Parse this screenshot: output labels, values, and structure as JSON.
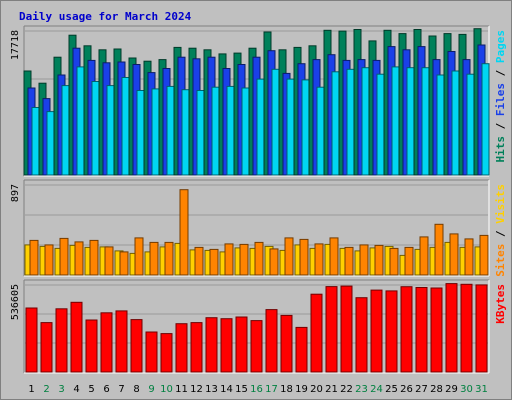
{
  "chart_data": {
    "type": "bar",
    "title": "Daily usage for March 2024",
    "categories": [
      "1",
      "2",
      "3",
      "4",
      "5",
      "6",
      "7",
      "8",
      "9",
      "10",
      "11",
      "12",
      "13",
      "14",
      "15",
      "16",
      "17",
      "18",
      "19",
      "20",
      "21",
      "22",
      "23",
      "24",
      "25",
      "26",
      "27",
      "28",
      "29",
      "30",
      "31"
    ],
    "weekend_days": [
      "2",
      "3",
      "9",
      "10",
      "16",
      "17",
      "23",
      "24",
      "30",
      "31"
    ],
    "colors": {
      "background": "#c0c0c0",
      "title": "#0000cc",
      "hits": "#00805a",
      "files": "#1a40e8",
      "pages": "#00d6f2",
      "visits": "#ffd000",
      "sites": "#ff8400",
      "kbytes": "#ff0000",
      "weekday_label": "#000000",
      "weekend_label": "#008040"
    },
    "panels": [
      {
        "id": "hits-files-pages",
        "max_label": "17718",
        "ylim": [
          0,
          17718
        ],
        "series": [
          {
            "name": "Hits",
            "color": "#00805a",
            "values": [
              12800,
              11300,
              14500,
              17200,
              15900,
              15400,
              15500,
              14400,
              14000,
              14200,
              15700,
              15600,
              15400,
              14900,
              15000,
              15600,
              17600,
              15400,
              15700,
              15900,
              17800,
              17700,
              17900,
              16500,
              17800,
              17400,
              17900,
              17100,
              17400,
              17300,
              18000
            ]
          },
          {
            "name": "Files",
            "color": "#1a40e8",
            "values": [
              10700,
              9400,
              12300,
              15600,
              14100,
              13800,
              13900,
              13600,
              12600,
              13100,
              14500,
              14300,
              14500,
              13100,
              13600,
              14500,
              15300,
              12500,
              13700,
              14200,
              14800,
              14100,
              14200,
              14100,
              15800,
              15400,
              15800,
              14200,
              15200,
              14200,
              16000
            ]
          },
          {
            "name": "Pages",
            "color": "#00d6f2",
            "values": [
              8300,
              7800,
              11000,
              13300,
              11500,
              11000,
              12000,
              10400,
              10600,
              10900,
              10500,
              10400,
              10800,
              10900,
              10700,
              11800,
              13000,
              11800,
              11700,
              10800,
              12700,
              13000,
              13200,
              12400,
              13300,
              13200,
              13200,
              12300,
              12800,
              12400,
              13700
            ]
          }
        ],
        "right_label": [
          {
            "text": "Hits",
            "color": "#00805a"
          },
          {
            "text": "Files",
            "color": "#1a40e8"
          },
          {
            "text": "Pages",
            "color": "#00d6f2"
          }
        ]
      },
      {
        "id": "visits-sites",
        "max_label": "897",
        "ylim": [
          0,
          897
        ],
        "series": [
          {
            "name": "Visits",
            "color": "#ffd000",
            "values": [
              300,
              285,
              265,
              295,
              275,
              280,
              240,
              215,
              230,
              280,
              315,
              250,
              245,
              230,
              270,
              265,
              285,
              245,
              300,
              265,
              305,
              265,
              240,
              270,
              285,
              195,
              255,
              275,
              325,
              275,
              280
            ]
          },
          {
            "name": "Sites",
            "color": "#ff8400",
            "values": [
              345,
              300,
              365,
              330,
              345,
              280,
              230,
              370,
              325,
              325,
              850,
              275,
              255,
              310,
              305,
              325,
              260,
              370,
              355,
              310,
              370,
              275,
              300,
              295,
              265,
              275,
              380,
              505,
              410,
              360,
              395
            ]
          }
        ],
        "right_label": [
          {
            "text": "Sites",
            "color": "#ff8400"
          },
          {
            "text": "Visits",
            "color": "#ffd000"
          }
        ]
      },
      {
        "id": "kbytes",
        "max_label": "536605",
        "ylim": [
          0,
          536605
        ],
        "series": [
          {
            "name": "KBytes",
            "color": "#ff0000",
            "values": [
              395000,
              305000,
              390000,
              430000,
              321000,
              365000,
              377000,
              323000,
              247000,
              237000,
              298000,
              305000,
              335000,
              329000,
              339000,
              317000,
              385000,
              349000,
              275000,
              480000,
              527000,
              530000,
              458000,
              505000,
              500000,
              526000,
              521000,
              518000,
              545000,
              541000,
              537000
            ]
          }
        ],
        "right_label": [
          {
            "text": "KBytes",
            "color": "#ff0000"
          }
        ]
      }
    ]
  }
}
